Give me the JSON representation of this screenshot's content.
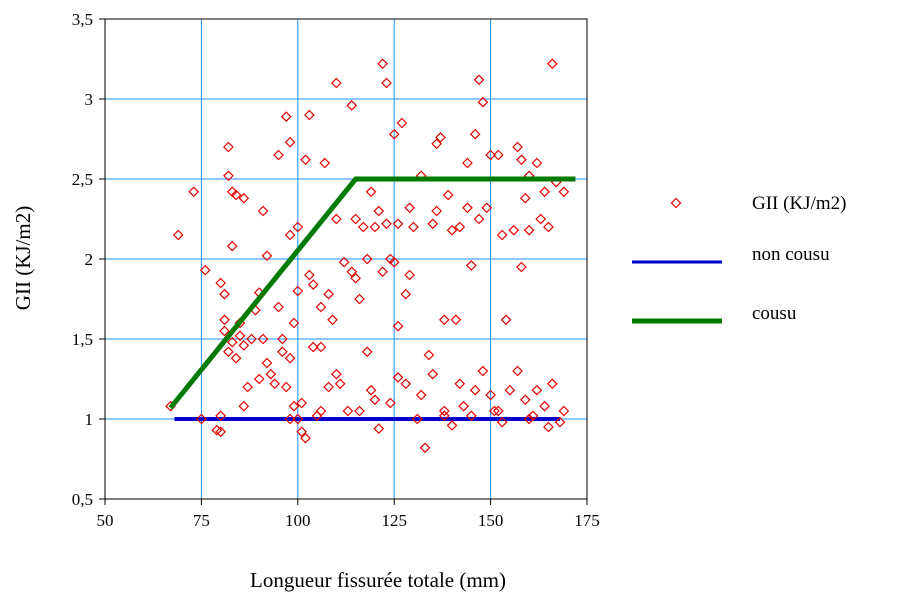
{
  "chart_data": {
    "type": "scatter",
    "xlabel": "Longueur fissurée totale (mm)",
    "ylabel": "GII (KJ/m2)",
    "xlim": [
      50,
      175
    ],
    "ylim": [
      0.5,
      3.5
    ],
    "x_ticks": [
      {
        "value": 50,
        "label": "50"
      },
      {
        "value": 75,
        "label": "75"
      },
      {
        "value": 100,
        "label": "100"
      },
      {
        "value": 125,
        "label": "125"
      },
      {
        "value": 150,
        "label": "150"
      },
      {
        "value": 175,
        "label": "175"
      }
    ],
    "y_ticks": [
      {
        "value": 0.5,
        "label": "0,5"
      },
      {
        "value": 1,
        "label": "1"
      },
      {
        "value": 1.5,
        "label": "1,5"
      },
      {
        "value": 2,
        "label": "2"
      },
      {
        "value": 2.5,
        "label": "2,5"
      },
      {
        "value": 3,
        "label": "3"
      },
      {
        "value": 3.5,
        "label": "3,5"
      }
    ],
    "grid": true,
    "legend_position": "right",
    "colors": {
      "scatter": "#e00000",
      "non_cousu": "#0000cc",
      "cousu": "#007a00",
      "grid": "#1e90ff"
    },
    "series": [
      {
        "name": "GII (KJ/m2)",
        "type": "scatter",
        "marker": "diamond-open",
        "points": [
          [
            67,
            1.08
          ],
          [
            69,
            2.15
          ],
          [
            73,
            2.42
          ],
          [
            75,
            1.0
          ],
          [
            76,
            1.93
          ],
          [
            79,
            0.93
          ],
          [
            80,
            0.92
          ],
          [
            80,
            1.02
          ],
          [
            81,
            1.62
          ],
          [
            80,
            1.85
          ],
          [
            81,
            1.78
          ],
          [
            82,
            2.7
          ],
          [
            82,
            2.52
          ],
          [
            83,
            2.42
          ],
          [
            83,
            2.08
          ],
          [
            84,
            2.4
          ],
          [
            85,
            1.52
          ],
          [
            86,
            2.38
          ],
          [
            86,
            1.08
          ],
          [
            87,
            1.2
          ],
          [
            81,
            1.55
          ],
          [
            82,
            1.42
          ],
          [
            83,
            1.48
          ],
          [
            84,
            1.38
          ],
          [
            85,
            1.6
          ],
          [
            86,
            1.46
          ],
          [
            88,
            1.5
          ],
          [
            89,
            1.68
          ],
          [
            90,
            1.79
          ],
          [
            91,
            1.5
          ],
          [
            91,
            2.3
          ],
          [
            92,
            2.02
          ],
          [
            93,
            1.28
          ],
          [
            94,
            1.22
          ],
          [
            95,
            2.65
          ],
          [
            95,
            1.7
          ],
          [
            96,
            1.42
          ],
          [
            97,
            1.2
          ],
          [
            97,
            2.89
          ],
          [
            98,
            2.73
          ],
          [
            98,
            2.15
          ],
          [
            98,
            1.38
          ],
          [
            99,
            1.6
          ],
          [
            99,
            1.08
          ],
          [
            100,
            2.2
          ],
          [
            100,
            1.8
          ],
          [
            100,
            1.0
          ],
          [
            101,
            0.92
          ],
          [
            101,
            1.1
          ],
          [
            102,
            2.62
          ],
          [
            102,
            0.88
          ],
          [
            103,
            2.9
          ],
          [
            103,
            1.9
          ],
          [
            104,
            1.84
          ],
          [
            105,
            1.02
          ],
          [
            106,
            1.45
          ],
          [
            107,
            2.6
          ],
          [
            108,
            1.78
          ],
          [
            108,
            1.2
          ],
          [
            109,
            1.62
          ],
          [
            110,
            3.1
          ],
          [
            110,
            1.28
          ],
          [
            111,
            1.22
          ],
          [
            112,
            1.98
          ],
          [
            113,
            1.05
          ],
          [
            114,
            1.92
          ],
          [
            114,
            2.96
          ],
          [
            115,
            1.88
          ],
          [
            115,
            2.25
          ],
          [
            116,
            1.75
          ],
          [
            117,
            2.2
          ],
          [
            118,
            1.42
          ],
          [
            118,
            2.0
          ],
          [
            119,
            1.18
          ],
          [
            119,
            2.42
          ],
          [
            120,
            2.2
          ],
          [
            121,
            2.3
          ],
          [
            121,
            0.94
          ],
          [
            122,
            3.22
          ],
          [
            122,
            1.92
          ],
          [
            123,
            3.1
          ],
          [
            123,
            2.22
          ],
          [
            124,
            1.1
          ],
          [
            125,
            1.98
          ],
          [
            125,
            2.78
          ],
          [
            126,
            1.58
          ],
          [
            126,
            1.26
          ],
          [
            127,
            2.85
          ],
          [
            128,
            1.78
          ],
          [
            128,
            1.22
          ],
          [
            129,
            2.32
          ],
          [
            129,
            1.9
          ],
          [
            130,
            2.2
          ],
          [
            131,
            1.0
          ],
          [
            132,
            2.52
          ],
          [
            133,
            0.82
          ],
          [
            134,
            1.4
          ],
          [
            135,
            2.22
          ],
          [
            135,
            1.28
          ],
          [
            136,
            2.3
          ],
          [
            137,
            2.76
          ],
          [
            138,
            1.62
          ],
          [
            138,
            1.02
          ],
          [
            139,
            2.4
          ],
          [
            140,
            2.18
          ],
          [
            140,
            0.96
          ],
          [
            141,
            1.62
          ],
          [
            142,
            2.2
          ],
          [
            142,
            1.22
          ],
          [
            143,
            1.08
          ],
          [
            144,
            2.32
          ],
          [
            145,
            1.96
          ],
          [
            146,
            2.78
          ],
          [
            146,
            1.18
          ],
          [
            147,
            3.12
          ],
          [
            147,
            2.25
          ],
          [
            148,
            2.98
          ],
          [
            148,
            1.3
          ],
          [
            149,
            2.32
          ],
          [
            150,
            2.65
          ],
          [
            150,
            1.15
          ],
          [
            151,
            1.05
          ],
          [
            152,
            2.65
          ],
          [
            153,
            2.15
          ],
          [
            153,
            0.98
          ],
          [
            154,
            1.62
          ],
          [
            155,
            1.18
          ],
          [
            156,
            2.18
          ],
          [
            157,
            2.7
          ],
          [
            157,
            1.3
          ],
          [
            158,
            1.95
          ],
          [
            159,
            2.38
          ],
          [
            159,
            1.12
          ],
          [
            160,
            2.52
          ],
          [
            160,
            2.18
          ],
          [
            161,
            1.02
          ],
          [
            162,
            2.6
          ],
          [
            162,
            1.18
          ],
          [
            163,
            2.25
          ],
          [
            164,
            2.42
          ],
          [
            164,
            1.08
          ],
          [
            165,
            2.2
          ],
          [
            165,
            0.95
          ],
          [
            166,
            3.22
          ],
          [
            166,
            1.22
          ],
          [
            167,
            2.48
          ],
          [
            168,
            0.98
          ],
          [
            169,
            2.42
          ],
          [
            169,
            1.05
          ],
          [
            158,
            2.62
          ],
          [
            144,
            2.6
          ],
          [
            136,
            2.72
          ],
          [
            126,
            2.22
          ],
          [
            124,
            2.0
          ],
          [
            110,
            2.25
          ],
          [
            106,
            1.7
          ],
          [
            104,
            1.45
          ],
          [
            96,
            1.5
          ],
          [
            92,
            1.35
          ],
          [
            90,
            1.25
          ],
          [
            132,
            1.15
          ],
          [
            138,
            1.05
          ],
          [
            145,
            1.02
          ],
          [
            152,
            1.05
          ],
          [
            160,
            1.0
          ],
          [
            116,
            1.05
          ],
          [
            120,
            1.12
          ],
          [
            106,
            1.05
          ],
          [
            98,
            1.0
          ]
        ]
      },
      {
        "name": "non cousu",
        "type": "line",
        "points": [
          [
            68,
            1.0
          ],
          [
            168,
            1.0
          ]
        ]
      },
      {
        "name": "cousu",
        "type": "line",
        "points": [
          [
            67,
            1.07
          ],
          [
            115,
            2.5
          ],
          [
            172,
            2.5
          ]
        ]
      }
    ]
  }
}
